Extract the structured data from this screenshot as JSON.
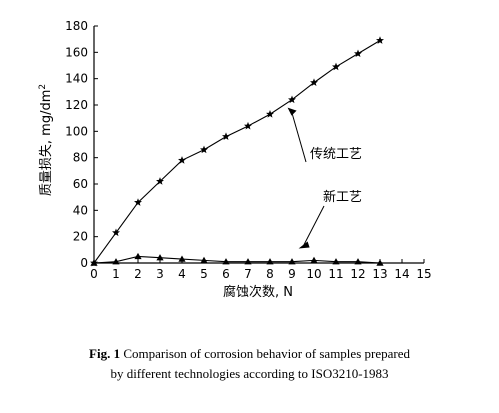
{
  "chart_data": {
    "type": "line",
    "xlabel": "腐蚀次数, N",
    "ylabel": "质量损失, mg/dm",
    "ylabel_sup": "2",
    "xlim": [
      0,
      15
    ],
    "ylim": [
      0,
      180
    ],
    "xticks": [
      "0",
      "1",
      "2",
      "3",
      "4",
      "5",
      "6",
      "7",
      "8",
      "9",
      "10",
      "11",
      "12",
      "13",
      "14",
      "15"
    ],
    "yticks": [
      "0",
      "20",
      "40",
      "60",
      "80",
      "100",
      "120",
      "140",
      "160",
      "180"
    ],
    "grid": false,
    "series": [
      {
        "name": "传统工艺",
        "marker": "star",
        "x": [
          0,
          1,
          2,
          3,
          4,
          5,
          6,
          7,
          8,
          9,
          10,
          11,
          12,
          13
        ],
        "y": [
          0,
          23,
          46,
          62,
          78,
          86,
          96,
          104,
          113,
          124,
          137,
          149,
          159,
          169
        ]
      },
      {
        "name": "新工艺",
        "marker": "triangle",
        "x": [
          0,
          1,
          2,
          3,
          4,
          5,
          6,
          7,
          8,
          9,
          10,
          11,
          12,
          13
        ],
        "y": [
          0,
          1,
          5,
          4,
          3,
          2,
          1,
          1,
          1,
          1,
          2,
          1,
          1,
          0
        ]
      }
    ],
    "annotations": [
      {
        "text": "传统工艺",
        "series": 0
      },
      {
        "text": "新工艺",
        "series": 1
      }
    ]
  },
  "caption": {
    "label": "Fig. 1",
    "line1": "Comparison of corrosion behavior of samples prepared",
    "line2": "by different technologies according to ISO3210-1983"
  }
}
